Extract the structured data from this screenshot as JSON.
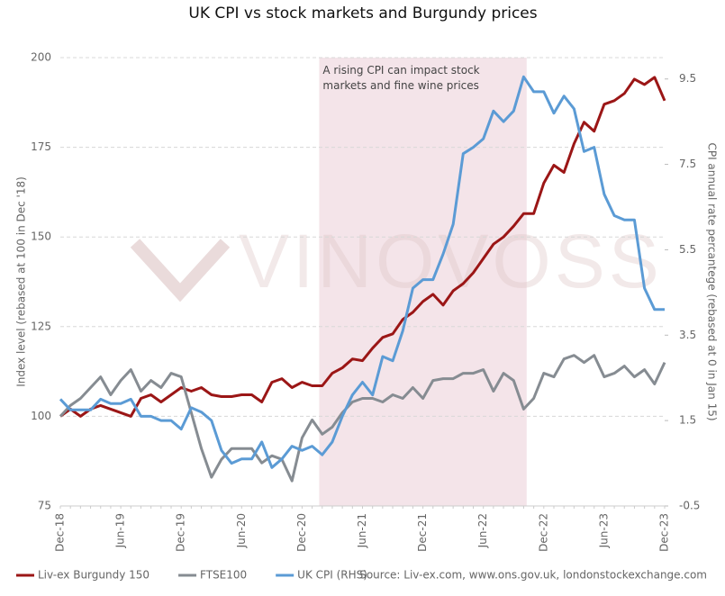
{
  "chart_data": {
    "type": "line",
    "title": "UK CPI vs stock markets and Burgundy prices",
    "annotation": "A rising CPI can impact stock markets and fine wine prices",
    "watermark": "VINOVOSS",
    "source": "Source: Liv-ex.com, www.ons.gov.uk, londonstockexchange.com",
    "ylabel": "Index level (rebased at 100 in Dec '18)",
    "y2label": "CPI annual rate percantege (rebased at 0 in Jan 15)",
    "categories": [
      "Dec-18",
      null,
      null,
      null,
      null,
      null,
      "Jun-19",
      null,
      null,
      null,
      null,
      null,
      "Dec-19",
      null,
      null,
      null,
      null,
      null,
      "Jun-20",
      null,
      null,
      null,
      null,
      null,
      "Dec-20",
      null,
      null,
      null,
      null,
      null,
      "Jun-21",
      null,
      null,
      null,
      null,
      null,
      "Dec-21",
      null,
      null,
      null,
      null,
      null,
      "Jun-22",
      null,
      null,
      null,
      null,
      null,
      "Dec-22",
      null,
      null,
      null,
      null,
      null,
      "Jun-23",
      null,
      null,
      null,
      null,
      null,
      "Dec-23"
    ],
    "highlight_range": [
      25.7,
      46.3
    ],
    "highlight_color": "#f2dfe5",
    "ylim": [
      75,
      200
    ],
    "yticks": [
      75,
      100,
      125,
      150,
      175,
      200
    ],
    "y2lim": [
      -0.5,
      10
    ],
    "y2ticks": [
      -0.5,
      1.5,
      3.5,
      5.5,
      7.5,
      9.5
    ],
    "grid": true,
    "series": [
      {
        "name": "Liv-ex Burgundy 150",
        "color": "#9b1616",
        "values": [
          100,
          102,
          100,
          102,
          103,
          102,
          101,
          100,
          105,
          106,
          104,
          106,
          108,
          107,
          108,
          106,
          105.5,
          105.5,
          106,
          106,
          104,
          109.5,
          110.5,
          108,
          109.5,
          108.5,
          108.5,
          112,
          113.5,
          116,
          115.5,
          119,
          122,
          123,
          127,
          129,
          132,
          134,
          131,
          135,
          137,
          140,
          144,
          148,
          150,
          153,
          156.5,
          156.5,
          165,
          170,
          168,
          176,
          182,
          179.5,
          187,
          188,
          190,
          194,
          192.5,
          194.5,
          188
        ]
      },
      {
        "name": "FTSE100",
        "color": "#868c92",
        "values": [
          100,
          103,
          105,
          108,
          111,
          106,
          110,
          113,
          107,
          110,
          108,
          112,
          111,
          101,
          91,
          83,
          88,
          91,
          91,
          91,
          87,
          89,
          88,
          82,
          94,
          99,
          95,
          97,
          101,
          104,
          105,
          105,
          104,
          106,
          105,
          108,
          105,
          110,
          110.5,
          110.5,
          112,
          112,
          113,
          107,
          112,
          110,
          102,
          105,
          112,
          111,
          116,
          117,
          115,
          117,
          111,
          112,
          114,
          111,
          113,
          109,
          115
        ]
      },
      {
        "name": "UK CPI (RHS)",
        "color": "#5b9bd5",
        "axis": "y2",
        "values": [
          2.0,
          1.75,
          1.75,
          1.75,
          2.0,
          1.9,
          1.9,
          2.0,
          1.6,
          1.6,
          1.5,
          1.5,
          1.3,
          1.8,
          1.7,
          1.5,
          0.8,
          0.5,
          0.6,
          0.6,
          1.0,
          0.4,
          0.6,
          0.9,
          0.8,
          0.9,
          0.7,
          1.0,
          1.6,
          2.1,
          2.4,
          2.1,
          3.0,
          2.9,
          3.6,
          4.6,
          4.8,
          4.8,
          5.4,
          6.1,
          7.75,
          7.9,
          8.1,
          8.75,
          8.5,
          8.75,
          9.55,
          9.2,
          9.2,
          8.7,
          9.1,
          8.8,
          7.8,
          7.9,
          6.8,
          6.3,
          6.2,
          6.2,
          4.6,
          4.1,
          4.1
        ]
      }
    ]
  }
}
